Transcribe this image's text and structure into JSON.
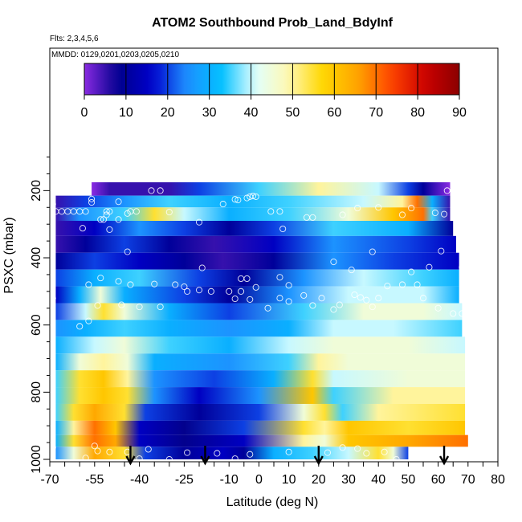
{
  "chart_data": {
    "type": "heatmap",
    "title": "ATOM2 Southbound Prob_Land_BdyInf",
    "subtitle_flights": "Flts: 2,3,4,5,6",
    "subtitle_dates": "MMDD: 0129,0201,0203,0205,0210",
    "xlabel": "Latitude (deg N)",
    "ylabel": "PSXC (mbar)",
    "xlim": [
      -70,
      80
    ],
    "ylim": [
      1000,
      100
    ],
    "x_ticks": [
      "-70",
      "-55",
      "-40",
      "-25",
      "-10",
      "0",
      "10",
      "20",
      "30",
      "40",
      "50",
      "60",
      "70",
      "80"
    ],
    "y_ticks": [
      "200",
      "400",
      "600",
      "800",
      "1000"
    ],
    "colorbar": {
      "ticks": [
        "0",
        "10",
        "20",
        "30",
        "40",
        "50",
        "60",
        "70",
        "80",
        "90"
      ],
      "range": [
        0,
        90
      ]
    },
    "arrow_latitudes": [
      -43,
      -18,
      20,
      62
    ],
    "rows": [
      {
        "p": 200,
        "segments": [
          [
            -56,
            -67
          ],
          [
            -50,
            5
          ],
          [
            -30,
            5
          ],
          [
            -20,
            20
          ],
          [
            0,
            35
          ],
          [
            20,
            50
          ],
          [
            40,
            40
          ],
          [
            50,
            20
          ],
          [
            55,
            10
          ],
          [
            64,
            0
          ]
        ]
      },
      {
        "p": 230,
        "segments": [
          [
            -68,
            5
          ],
          [
            -58,
            20
          ],
          [
            -45,
            25
          ],
          [
            -30,
            35
          ],
          [
            -10,
            30
          ],
          [
            10,
            35
          ],
          [
            35,
            40
          ],
          [
            48,
            50
          ],
          [
            53,
            70
          ],
          [
            58,
            30
          ],
          [
            64,
            5
          ]
        ]
      },
      {
        "p": 270,
        "segments": [
          [
            -68,
            5
          ],
          [
            -60,
            25
          ],
          [
            -45,
            35
          ],
          [
            -35,
            55
          ],
          [
            -25,
            40
          ],
          [
            -10,
            30
          ],
          [
            10,
            35
          ],
          [
            30,
            45
          ],
          [
            45,
            60
          ],
          [
            55,
            70
          ],
          [
            58,
            35
          ],
          [
            64,
            5
          ]
        ]
      },
      {
        "p": 310,
        "segments": [
          [
            -68,
            5
          ],
          [
            -55,
            15
          ],
          [
            -40,
            25
          ],
          [
            -25,
            20
          ],
          [
            -10,
            10
          ],
          [
            5,
            20
          ],
          [
            25,
            35
          ],
          [
            50,
            30
          ],
          [
            65,
            10
          ]
        ]
      },
      {
        "p": 360,
        "segments": [
          [
            -68,
            5
          ],
          [
            -58,
            10
          ],
          [
            -45,
            20
          ],
          [
            -30,
            10
          ],
          [
            -15,
            5
          ],
          [
            5,
            15
          ],
          [
            25,
            25
          ],
          [
            50,
            20
          ],
          [
            66,
            15
          ]
        ]
      },
      {
        "p": 410,
        "segments": [
          [
            -68,
            10
          ],
          [
            -55,
            20
          ],
          [
            -40,
            15
          ],
          [
            -25,
            10
          ],
          [
            -12,
            5
          ],
          [
            5,
            10
          ],
          [
            25,
            25
          ],
          [
            45,
            20
          ],
          [
            67,
            15
          ]
        ]
      },
      {
        "p": 460,
        "segments": [
          [
            -68,
            20
          ],
          [
            -55,
            30
          ],
          [
            -40,
            35
          ],
          [
            -20,
            20
          ],
          [
            -5,
            10
          ],
          [
            15,
            25
          ],
          [
            35,
            40
          ],
          [
            55,
            35
          ],
          [
            67,
            30
          ]
        ]
      },
      {
        "p": 510,
        "segments": [
          [
            -68,
            15
          ],
          [
            -60,
            30
          ],
          [
            -53,
            45
          ],
          [
            -45,
            30
          ],
          [
            -25,
            20
          ],
          [
            -10,
            10
          ],
          [
            10,
            25
          ],
          [
            30,
            40
          ],
          [
            55,
            40
          ],
          [
            67,
            30
          ]
        ]
      },
      {
        "p": 560,
        "segments": [
          [
            -68,
            20
          ],
          [
            -58,
            40
          ],
          [
            -52,
            55
          ],
          [
            -45,
            45
          ],
          [
            -30,
            30
          ],
          [
            -10,
            20
          ],
          [
            15,
            35
          ],
          [
            35,
            45
          ],
          [
            55,
            45
          ],
          [
            68,
            40
          ]
        ]
      },
      {
        "p": 610,
        "segments": [
          [
            -68,
            25
          ],
          [
            -58,
            30
          ],
          [
            -45,
            35
          ],
          [
            -30,
            30
          ],
          [
            -10,
            25
          ],
          [
            10,
            30
          ],
          [
            25,
            40
          ],
          [
            45,
            40
          ],
          [
            68,
            35
          ]
        ]
      },
      {
        "p": 660,
        "segments": [
          [
            -68,
            30
          ],
          [
            -55,
            40
          ],
          [
            -45,
            45
          ],
          [
            -30,
            35
          ],
          [
            -10,
            30
          ],
          [
            10,
            40
          ],
          [
            25,
            45
          ],
          [
            50,
            45
          ],
          [
            69,
            40
          ]
        ]
      },
      {
        "p": 710,
        "segments": [
          [
            -68,
            30
          ],
          [
            -60,
            45
          ],
          [
            -52,
            50
          ],
          [
            -44,
            45
          ],
          [
            -35,
            30
          ],
          [
            -10,
            25
          ],
          [
            10,
            35
          ],
          [
            20,
            50
          ],
          [
            30,
            45
          ],
          [
            55,
            45
          ],
          [
            69,
            45
          ]
        ]
      },
      {
        "p": 760,
        "segments": [
          [
            -68,
            35
          ],
          [
            -60,
            55
          ],
          [
            -52,
            60
          ],
          [
            -44,
            50
          ],
          [
            -35,
            25
          ],
          [
            -15,
            20
          ],
          [
            5,
            30
          ],
          [
            18,
            55
          ],
          [
            25,
            40
          ],
          [
            50,
            45
          ],
          [
            69,
            45
          ]
        ]
      },
      {
        "p": 810,
        "segments": [
          [
            -68,
            35
          ],
          [
            -60,
            55
          ],
          [
            -52,
            60
          ],
          [
            -44,
            55
          ],
          [
            -35,
            25
          ],
          [
            -20,
            15
          ],
          [
            0,
            25
          ],
          [
            18,
            60
          ],
          [
            25,
            35
          ],
          [
            45,
            50
          ],
          [
            69,
            50
          ]
        ]
      },
      {
        "p": 860,
        "segments": [
          [
            -68,
            35
          ],
          [
            -62,
            55
          ],
          [
            -55,
            65
          ],
          [
            -45,
            55
          ],
          [
            -38,
            20
          ],
          [
            -20,
            10
          ],
          [
            0,
            20
          ],
          [
            15,
            45
          ],
          [
            22,
            55
          ],
          [
            28,
            35
          ],
          [
            40,
            50
          ],
          [
            69,
            55
          ]
        ]
      },
      {
        "p": 910,
        "segments": [
          [
            -68,
            30
          ],
          [
            -62,
            50
          ],
          [
            -55,
            70
          ],
          [
            -48,
            60
          ],
          [
            -40,
            15
          ],
          [
            -25,
            8
          ],
          [
            -5,
            20
          ],
          [
            15,
            55
          ],
          [
            22,
            50
          ],
          [
            30,
            60
          ],
          [
            50,
            55
          ],
          [
            69,
            60
          ]
        ]
      },
      {
        "p": 945,
        "segments": [
          [
            -68,
            30
          ],
          [
            -62,
            55
          ],
          [
            -55,
            70
          ],
          [
            -48,
            65
          ],
          [
            -40,
            15
          ],
          [
            -25,
            8
          ],
          [
            -5,
            15
          ],
          [
            15,
            50
          ],
          [
            22,
            45
          ],
          [
            30,
            60
          ],
          [
            50,
            65
          ],
          [
            70,
            70
          ]
        ]
      },
      {
        "p": 980,
        "segments": [
          [
            -68,
            25
          ],
          [
            -62,
            45
          ],
          [
            -55,
            65
          ],
          [
            -45,
            55
          ],
          [
            -38,
            20
          ],
          [
            -25,
            10
          ],
          [
            -12,
            15
          ],
          [
            -5,
            10
          ],
          [
            5,
            30
          ],
          [
            18,
            35
          ],
          [
            30,
            40
          ],
          [
            40,
            55
          ],
          [
            45,
            45
          ],
          [
            50,
            20
          ]
        ]
      }
    ],
    "points": [
      [
        -69,
        240
      ],
      [
        -56,
        225
      ],
      [
        -56,
        235
      ],
      [
        -47,
        233
      ],
      [
        -36,
        200
      ],
      [
        -33,
        200
      ],
      [
        -60,
        200
      ],
      [
        -58,
        200
      ],
      [
        -68,
        262
      ],
      [
        -66,
        262
      ],
      [
        -64,
        262
      ],
      [
        -62,
        262
      ],
      [
        -60,
        262
      ],
      [
        -58,
        262
      ],
      [
        -51,
        262
      ],
      [
        -50,
        262
      ],
      [
        -43,
        262
      ],
      [
        -41,
        262
      ],
      [
        -44,
        268
      ],
      [
        -51,
        272
      ],
      [
        -30,
        264
      ],
      [
        -20,
        294
      ],
      [
        -12,
        240
      ],
      [
        -7,
        228
      ],
      [
        -4,
        222
      ],
      [
        -3,
        218
      ],
      [
        -2,
        216
      ],
      [
        -1,
        218
      ],
      [
        -8,
        226
      ],
      [
        4,
        262
      ],
      [
        7,
        262
      ],
      [
        16,
        280
      ],
      [
        18,
        280
      ],
      [
        28,
        272
      ],
      [
        33,
        252
      ],
      [
        40,
        250
      ],
      [
        48,
        272
      ],
      [
        51,
        252
      ],
      [
        59,
        266
      ],
      [
        62,
        270
      ],
      [
        63,
        200
      ],
      [
        65,
        200
      ],
      [
        8,
        314
      ],
      [
        -59,
        312
      ],
      [
        -50,
        316
      ],
      [
        -53,
        286
      ],
      [
        -52,
        286
      ],
      [
        -47,
        286
      ],
      [
        -44,
        382
      ],
      [
        -19,
        430
      ],
      [
        -6,
        462
      ],
      [
        -4,
        462
      ],
      [
        -1,
        488
      ],
      [
        -6,
        500
      ],
      [
        7,
        458
      ],
      [
        10,
        482
      ],
      [
        15,
        512
      ],
      [
        25,
        412
      ],
      [
        31,
        436
      ],
      [
        38,
        382
      ],
      [
        51,
        442
      ],
      [
        57,
        428
      ],
      [
        61,
        380
      ],
      [
        68,
        428
      ],
      [
        -71,
        510
      ],
      [
        -69,
        520
      ],
      [
        -57,
        480
      ],
      [
        -53,
        460
      ],
      [
        -47,
        470
      ],
      [
        -43,
        480
      ],
      [
        -35,
        478
      ],
      [
        -28,
        480
      ],
      [
        -25,
        486
      ],
      [
        -20,
        496
      ],
      [
        -10,
        500
      ],
      [
        -8,
        522
      ],
      [
        -3,
        524
      ],
      [
        -60,
        604
      ],
      [
        -57,
        588
      ],
      [
        -54,
        542
      ],
      [
        -46,
        540
      ],
      [
        -40,
        546
      ],
      [
        -33,
        546
      ],
      [
        -24,
        500
      ],
      [
        -16,
        500
      ],
      [
        3,
        550
      ],
      [
        7,
        520
      ],
      [
        10,
        530
      ],
      [
        18,
        542
      ],
      [
        21,
        520
      ],
      [
        25,
        554
      ],
      [
        27,
        540
      ],
      [
        32,
        510
      ],
      [
        34,
        518
      ],
      [
        36,
        526
      ],
      [
        38,
        546
      ],
      [
        40,
        520
      ],
      [
        43,
        484
      ],
      [
        48,
        480
      ],
      [
        53,
        480
      ],
      [
        55,
        520
      ],
      [
        60,
        550
      ],
      [
        65,
        566
      ],
      [
        68,
        566
      ],
      [
        -55,
        960
      ],
      [
        -54,
        975
      ],
      [
        -50,
        978
      ],
      [
        -44,
        978
      ],
      [
        -37,
        970
      ],
      [
        -24,
        980
      ],
      [
        -14,
        982
      ],
      [
        -3,
        985
      ],
      [
        10,
        978
      ],
      [
        23,
        980
      ],
      [
        28,
        965
      ],
      [
        33,
        968
      ],
      [
        36,
        982
      ],
      [
        42,
        978
      ],
      [
        46,
        1000
      ],
      [
        -69,
        965
      ],
      [
        -58,
        996
      ],
      [
        -40,
        998
      ],
      [
        -30,
        1000
      ],
      [
        -8,
        998
      ]
    ]
  },
  "colors": {
    "palette": [
      "#8a2be2",
      "#00008b",
      "#0000cd",
      "#1e90ff",
      "#00bfff",
      "#e0ffff",
      "#fff8b0",
      "#ffd700",
      "#ffa500",
      "#ff4500",
      "#cc0000",
      "#8b0000"
    ]
  }
}
